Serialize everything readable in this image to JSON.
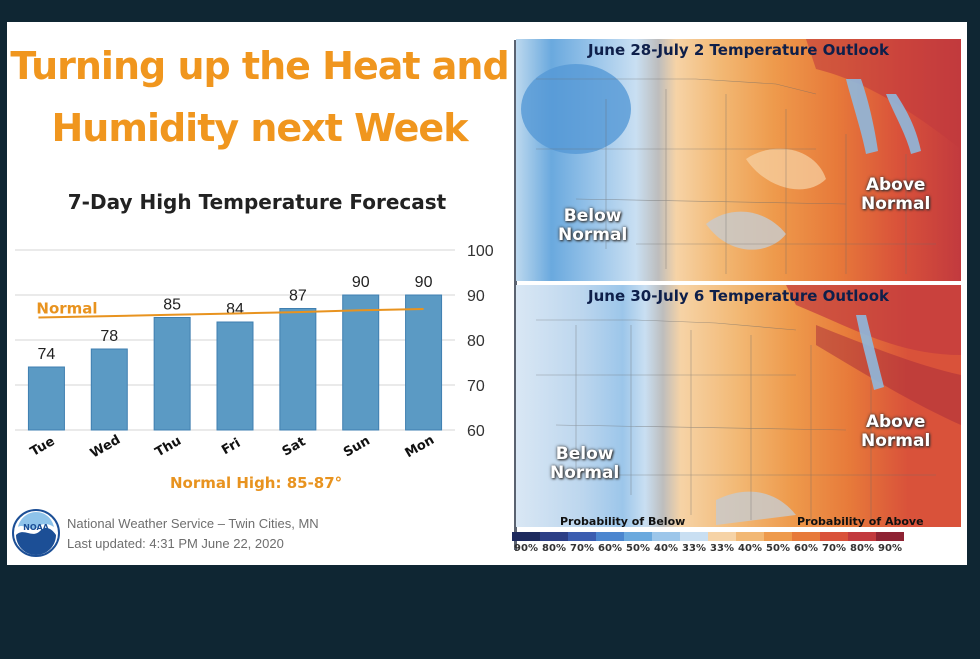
{
  "headline": {
    "line1": "Turning up the Heat and",
    "line2": "Humidity next Week"
  },
  "chart_data": {
    "type": "bar",
    "title": "7-Day High Temperature Forecast",
    "categories": [
      "Tue",
      "Wed",
      "Thu",
      "Fri",
      "Sat",
      "Sun",
      "Mon"
    ],
    "values": [
      74,
      78,
      85,
      84,
      87,
      90,
      90
    ],
    "normal_line": {
      "label": "Normal",
      "values": [
        85,
        85.3,
        85.6,
        85.9,
        86.2,
        86.6,
        86.9
      ]
    },
    "ylim": [
      60,
      100
    ],
    "yticks": [
      60,
      70,
      80,
      90,
      100
    ],
    "grid": true,
    "bar_color": "#5b9ac4",
    "line_color": "#e8931f"
  },
  "normal_high": "Normal High: 85-87°",
  "footer": {
    "logo_text": "NOAA",
    "office": "National Weather Service – Twin Cities, MN",
    "updated": "Last updated: 4:31 PM June 22, 2020"
  },
  "maps": [
    {
      "title": "June 28-July 2 Temperature Outlook",
      "below_label": [
        "Below",
        "Normal"
      ],
      "above_label": [
        "Above",
        "Normal"
      ]
    },
    {
      "title": "June 30-July 6 Temperature Outlook",
      "below_label": [
        "Below",
        "Normal"
      ],
      "above_label": [
        "Above",
        "Normal"
      ]
    }
  ],
  "legend": {
    "below_title": "Probability of Below",
    "above_title": "Probability of Above",
    "labels": [
      "90%",
      "80%",
      "70%",
      "60%",
      "50%",
      "40%",
      "33%",
      "33%",
      "40%",
      "50%",
      "60%",
      "70%",
      "80%",
      "90%"
    ],
    "colors": [
      "#1d2a5e",
      "#2c3f86",
      "#3b5db0",
      "#4b86cf",
      "#6aa9de",
      "#9cc6ea",
      "#c9dff2",
      "#f6d3a6",
      "#f2b874",
      "#ee9a4c",
      "#e77a3a",
      "#d9523a",
      "#c23a3e",
      "#8e2333"
    ]
  }
}
